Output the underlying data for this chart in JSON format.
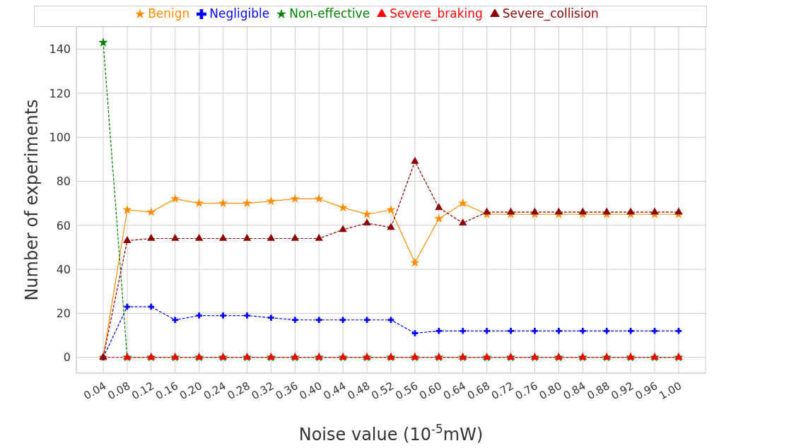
{
  "chart_data": {
    "type": "line",
    "xlabel": "Noise value (10$^{-5}$mW)",
    "ylabel": "Number of experiments",
    "categories": [
      "0.04",
      "0.08",
      "0.12",
      "0.16",
      "0.20",
      "0.24",
      "0.28",
      "0.32",
      "0.36",
      "0.40",
      "0.44",
      "0.48",
      "0.52",
      "0.56",
      "0.60",
      "0.64",
      "0.68",
      "0.72",
      "0.76",
      "0.80",
      "0.84",
      "0.88",
      "0.92",
      "0.96",
      "1.00"
    ],
    "series": [
      {
        "name": "Benign",
        "color": "#ff8c00",
        "marker": "star",
        "line_style": "solid",
        "values": [
          0,
          67,
          66,
          72,
          70,
          70,
          70,
          71,
          72,
          72,
          68,
          65,
          67,
          43,
          63,
          70,
          65,
          65,
          65,
          65,
          65,
          65,
          65,
          65,
          65
        ]
      },
      {
        "name": "Negligible",
        "color": "#0000ff",
        "marker": "cross",
        "line_style": "dashed",
        "values": [
          0,
          23,
          23,
          17,
          19,
          19,
          19,
          18,
          17,
          17,
          17,
          17,
          17,
          11,
          12,
          12,
          12,
          12,
          12,
          12,
          12,
          12,
          12,
          12,
          12
        ]
      },
      {
        "name": "Non-effective",
        "color": "#008000",
        "marker": "star",
        "line_style": "dashed",
        "values": [
          143,
          0,
          0,
          0,
          0,
          0,
          0,
          0,
          0,
          0,
          0,
          0,
          0,
          0,
          0,
          0,
          0,
          0,
          0,
          0,
          0,
          0,
          0,
          0,
          0
        ]
      },
      {
        "name": "Severe_braking",
        "color": "#ff0000",
        "marker": "triangle",
        "line_style": "dashed",
        "values": [
          0,
          0,
          0,
          0,
          0,
          0,
          0,
          0,
          0,
          0,
          0,
          0,
          0,
          0,
          0,
          0,
          0,
          0,
          0,
          0,
          0,
          0,
          0,
          0,
          0
        ]
      },
      {
        "name": "Severe_collision",
        "color": "#8b0000",
        "marker": "triangle",
        "line_style": "dashed",
        "values": [
          0,
          53,
          54,
          54,
          54,
          54,
          54,
          54,
          54,
          54,
          58,
          61,
          59,
          89,
          68,
          61,
          66,
          66,
          66,
          66,
          66,
          66,
          66,
          66,
          66
        ]
      }
    ],
    "ylim": [
      -7.15,
      150.15
    ],
    "yticks": [
      0,
      20,
      40,
      60,
      80,
      100,
      120,
      140
    ],
    "grid": true,
    "legend": "top"
  }
}
